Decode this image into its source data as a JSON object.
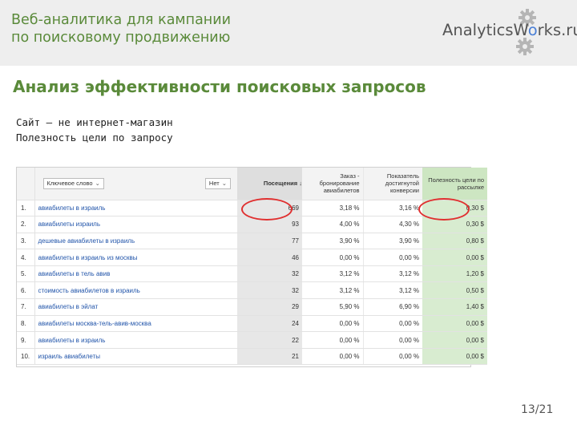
{
  "header": {
    "title_line1": "Веб-аналитика для кампании",
    "title_line2": "по поисковому продвижению",
    "logo_text_before": "AnalyticsW",
    "logo_text_o": "o",
    "logo_text_after": "rks.ru"
  },
  "section_title": "Анализ эффективности поисковых запросов",
  "subtitle1": "Сайт – не интернет-магазин",
  "subtitle2": "Полезность цели по запросу",
  "table": {
    "columns": {
      "keyword_select": "Ключевое слово",
      "second_select": "Нет",
      "visits": "Посещения ↓",
      "booking": "Заказ - бронирование авиабилетов",
      "conversion": "Показатель достигнутой конверсии",
      "value": "Полезность цели по рассылке"
    },
    "rows": [
      {
        "n": "1.",
        "kw": "авиабилеты в израиль",
        "visits": "669",
        "booking": "3,18 %",
        "conv": "3,16 %",
        "value": "0,30 $"
      },
      {
        "n": "2.",
        "kw": "авиабилеты израиль",
        "visits": "93",
        "booking": "4,00 %",
        "conv": "4,30 %",
        "value": "0,30 $"
      },
      {
        "n": "3.",
        "kw": "дешевые авиабилеты в израиль",
        "visits": "77",
        "booking": "3,90 %",
        "conv": "3,90 %",
        "value": "0,80 $"
      },
      {
        "n": "4.",
        "kw": "авиабилеты в израиль из москвы",
        "visits": "46",
        "booking": "0,00 %",
        "conv": "0,00 %",
        "value": "0,00 $"
      },
      {
        "n": "5.",
        "kw": "авиабилеты в тель авив",
        "visits": "32",
        "booking": "3,12 %",
        "conv": "3,12 %",
        "value": "1,20 $"
      },
      {
        "n": "6.",
        "kw": "стоимость авиабилетов в израиль",
        "visits": "32",
        "booking": "3,12 %",
        "conv": "3,12 %",
        "value": "0,50 $"
      },
      {
        "n": "7.",
        "kw": "авиабилеты в эйлат",
        "visits": "29",
        "booking": "5,90 %",
        "conv": "6,90 %",
        "value": "1,40 $"
      },
      {
        "n": "8.",
        "kw": "авиабилеты москва-тель-авив-москва",
        "visits": "24",
        "booking": "0,00 %",
        "conv": "0,00 %",
        "value": "0,00 $"
      },
      {
        "n": "9.",
        "kw": "авиабилеты в израиль",
        "visits": "22",
        "booking": "0,00 %",
        "conv": "0,00 %",
        "value": "0,00 $"
      },
      {
        "n": "10.",
        "kw": "израиль авиабилеты",
        "visits": "21",
        "booking": "0,00 %",
        "conv": "0,00 %",
        "value": "0,00 $"
      }
    ]
  },
  "page_number": "13/21",
  "colors": {
    "accent_green": "#5a8a3a",
    "logo_blue": "#4a7fd6",
    "highlight_red": "#e03030",
    "value_column": "#d8ecd0"
  },
  "icons": [
    "gear-icon",
    "gear-icon",
    "chevron-down-icon"
  ]
}
